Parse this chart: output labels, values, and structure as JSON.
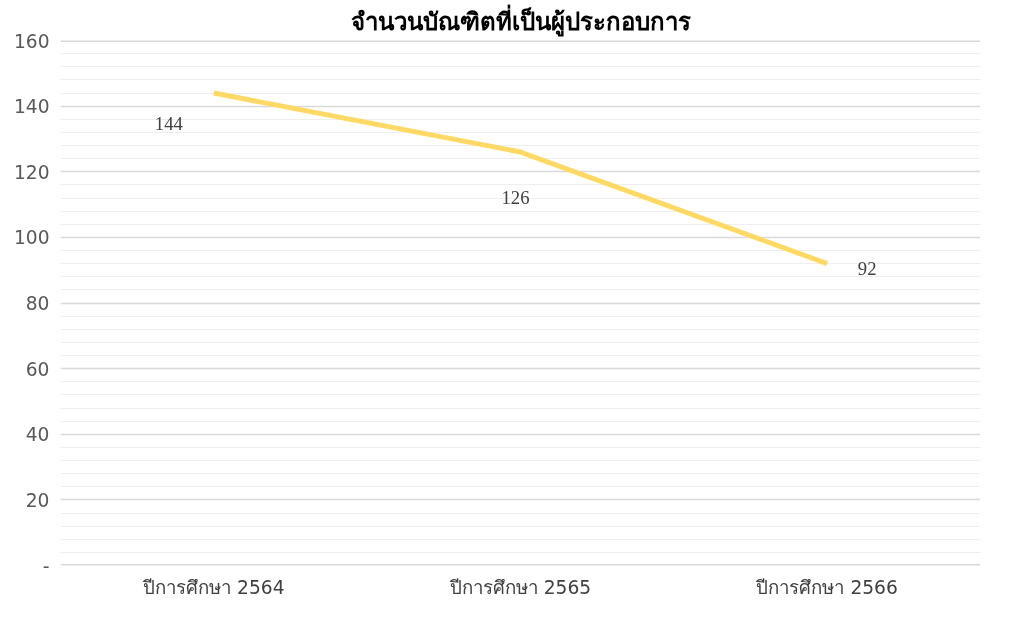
{
  "chart_data": {
    "type": "line",
    "title": "จำนวนบัณฑิตที่เป็นผู้ประกอบการ",
    "categories": [
      "ปีการศึกษา 2564",
      "ปีการศึกษา 2565",
      "ปีการศึกษา 2566"
    ],
    "series": [
      {
        "color": "#ffd966",
        "values": [
          144,
          126,
          92
        ]
      }
    ],
    "ylim": [
      0,
      160
    ],
    "yticks": [
      {
        "value": 0,
        "label": "-"
      },
      20,
      40,
      60,
      80,
      100,
      120,
      140,
      160
    ],
    "grid": "y",
    "data_labels": true,
    "marker": "none",
    "line_style": "solid"
  }
}
